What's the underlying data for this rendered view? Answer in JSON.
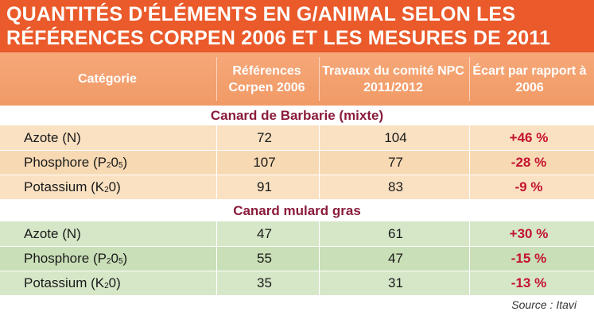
{
  "title": {
    "line1": "QUANTITÉS D'ÉLÉMENTS EN G/ANIMAL SELON LES",
    "line2": "RÉFÉRENCES CORPEN 2006 ET LES MESURES DE 2011"
  },
  "headers": {
    "category": "Catégorie",
    "corpen": "Références Corpen 2006",
    "npc": "Travaux du comité NPC 2011/2012",
    "ecart": "Écart par rapport à 2006"
  },
  "groups": [
    {
      "title": "Canard de Barbarie (mixte)",
      "rows": [
        {
          "name": "Azote (N)",
          "sub": "",
          "after": "",
          "ref": "72",
          "npc": "104",
          "ecart": "+46 %"
        },
        {
          "name": "Phosphore (P",
          "sub": "2",
          "mid": "0",
          "sub2": "5",
          "after": ")",
          "ref": "107",
          "npc": "77",
          "ecart": "-28 %"
        },
        {
          "name": "Potassium (K",
          "sub": "2",
          "mid": "0",
          "after": ")",
          "ref": "91",
          "npc": "83",
          "ecart": "-9 %"
        }
      ]
    },
    {
      "title": "Canard mulard gras",
      "rows": [
        {
          "name": "Azote (N)",
          "sub": "",
          "after": "",
          "ref": "47",
          "npc": "61",
          "ecart": "+30 %"
        },
        {
          "name": "Phosphore (P",
          "sub": "2",
          "mid": "0",
          "sub2": "5",
          "after": ")",
          "ref": "55",
          "npc": "47",
          "ecart": "-15 %"
        },
        {
          "name": "Potassium (K",
          "sub": "2",
          "mid": "0",
          "after": ")",
          "ref": "35",
          "npc": "31",
          "ecart": "-13 %"
        }
      ]
    }
  ],
  "source": "Source : Itavi",
  "colors": {
    "title_bg": "#ea5a2a",
    "header_bg": "#f19a66",
    "group1_rows": "#f9e1c2",
    "group2_rows": "#d6e7c8",
    "group_title": "#8a1c3a",
    "ecart_text": "#c4132f"
  }
}
